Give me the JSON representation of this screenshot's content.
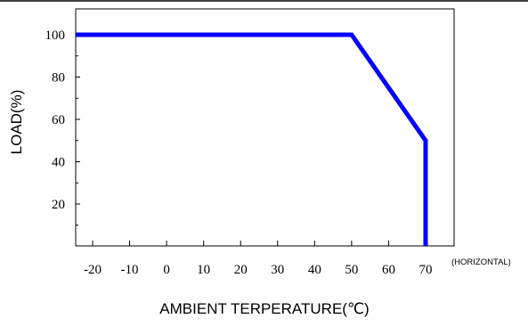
{
  "chart_data": {
    "type": "line",
    "xlabel": "AMBIENT TERPERATURE(℃)",
    "ylabel": "LOAD(%)",
    "orientation_note": "(HORIZONTAL)",
    "xlim": [
      -25,
      72
    ],
    "ylim": [
      0,
      110
    ],
    "x_ticks": [
      -20,
      -10,
      0,
      10,
      20,
      30,
      40,
      50,
      60,
      70
    ],
    "x_tick_labels": [
      "-20",
      "-10",
      "0",
      "10",
      "20",
      "30",
      "40",
      "50",
      "60",
      "70"
    ],
    "y_ticks": [
      20,
      40,
      60,
      80,
      100
    ],
    "y_tick_labels": [
      "20",
      "40",
      "60",
      "80",
      "100"
    ],
    "grid": false,
    "series": [
      {
        "color": "#0000ff",
        "points": [
          {
            "x": -25,
            "y": 100
          },
          {
            "x": 50,
            "y": 100
          },
          {
            "x": 70,
            "y": 50
          },
          {
            "x": 70,
            "y": 0
          }
        ]
      }
    ]
  }
}
